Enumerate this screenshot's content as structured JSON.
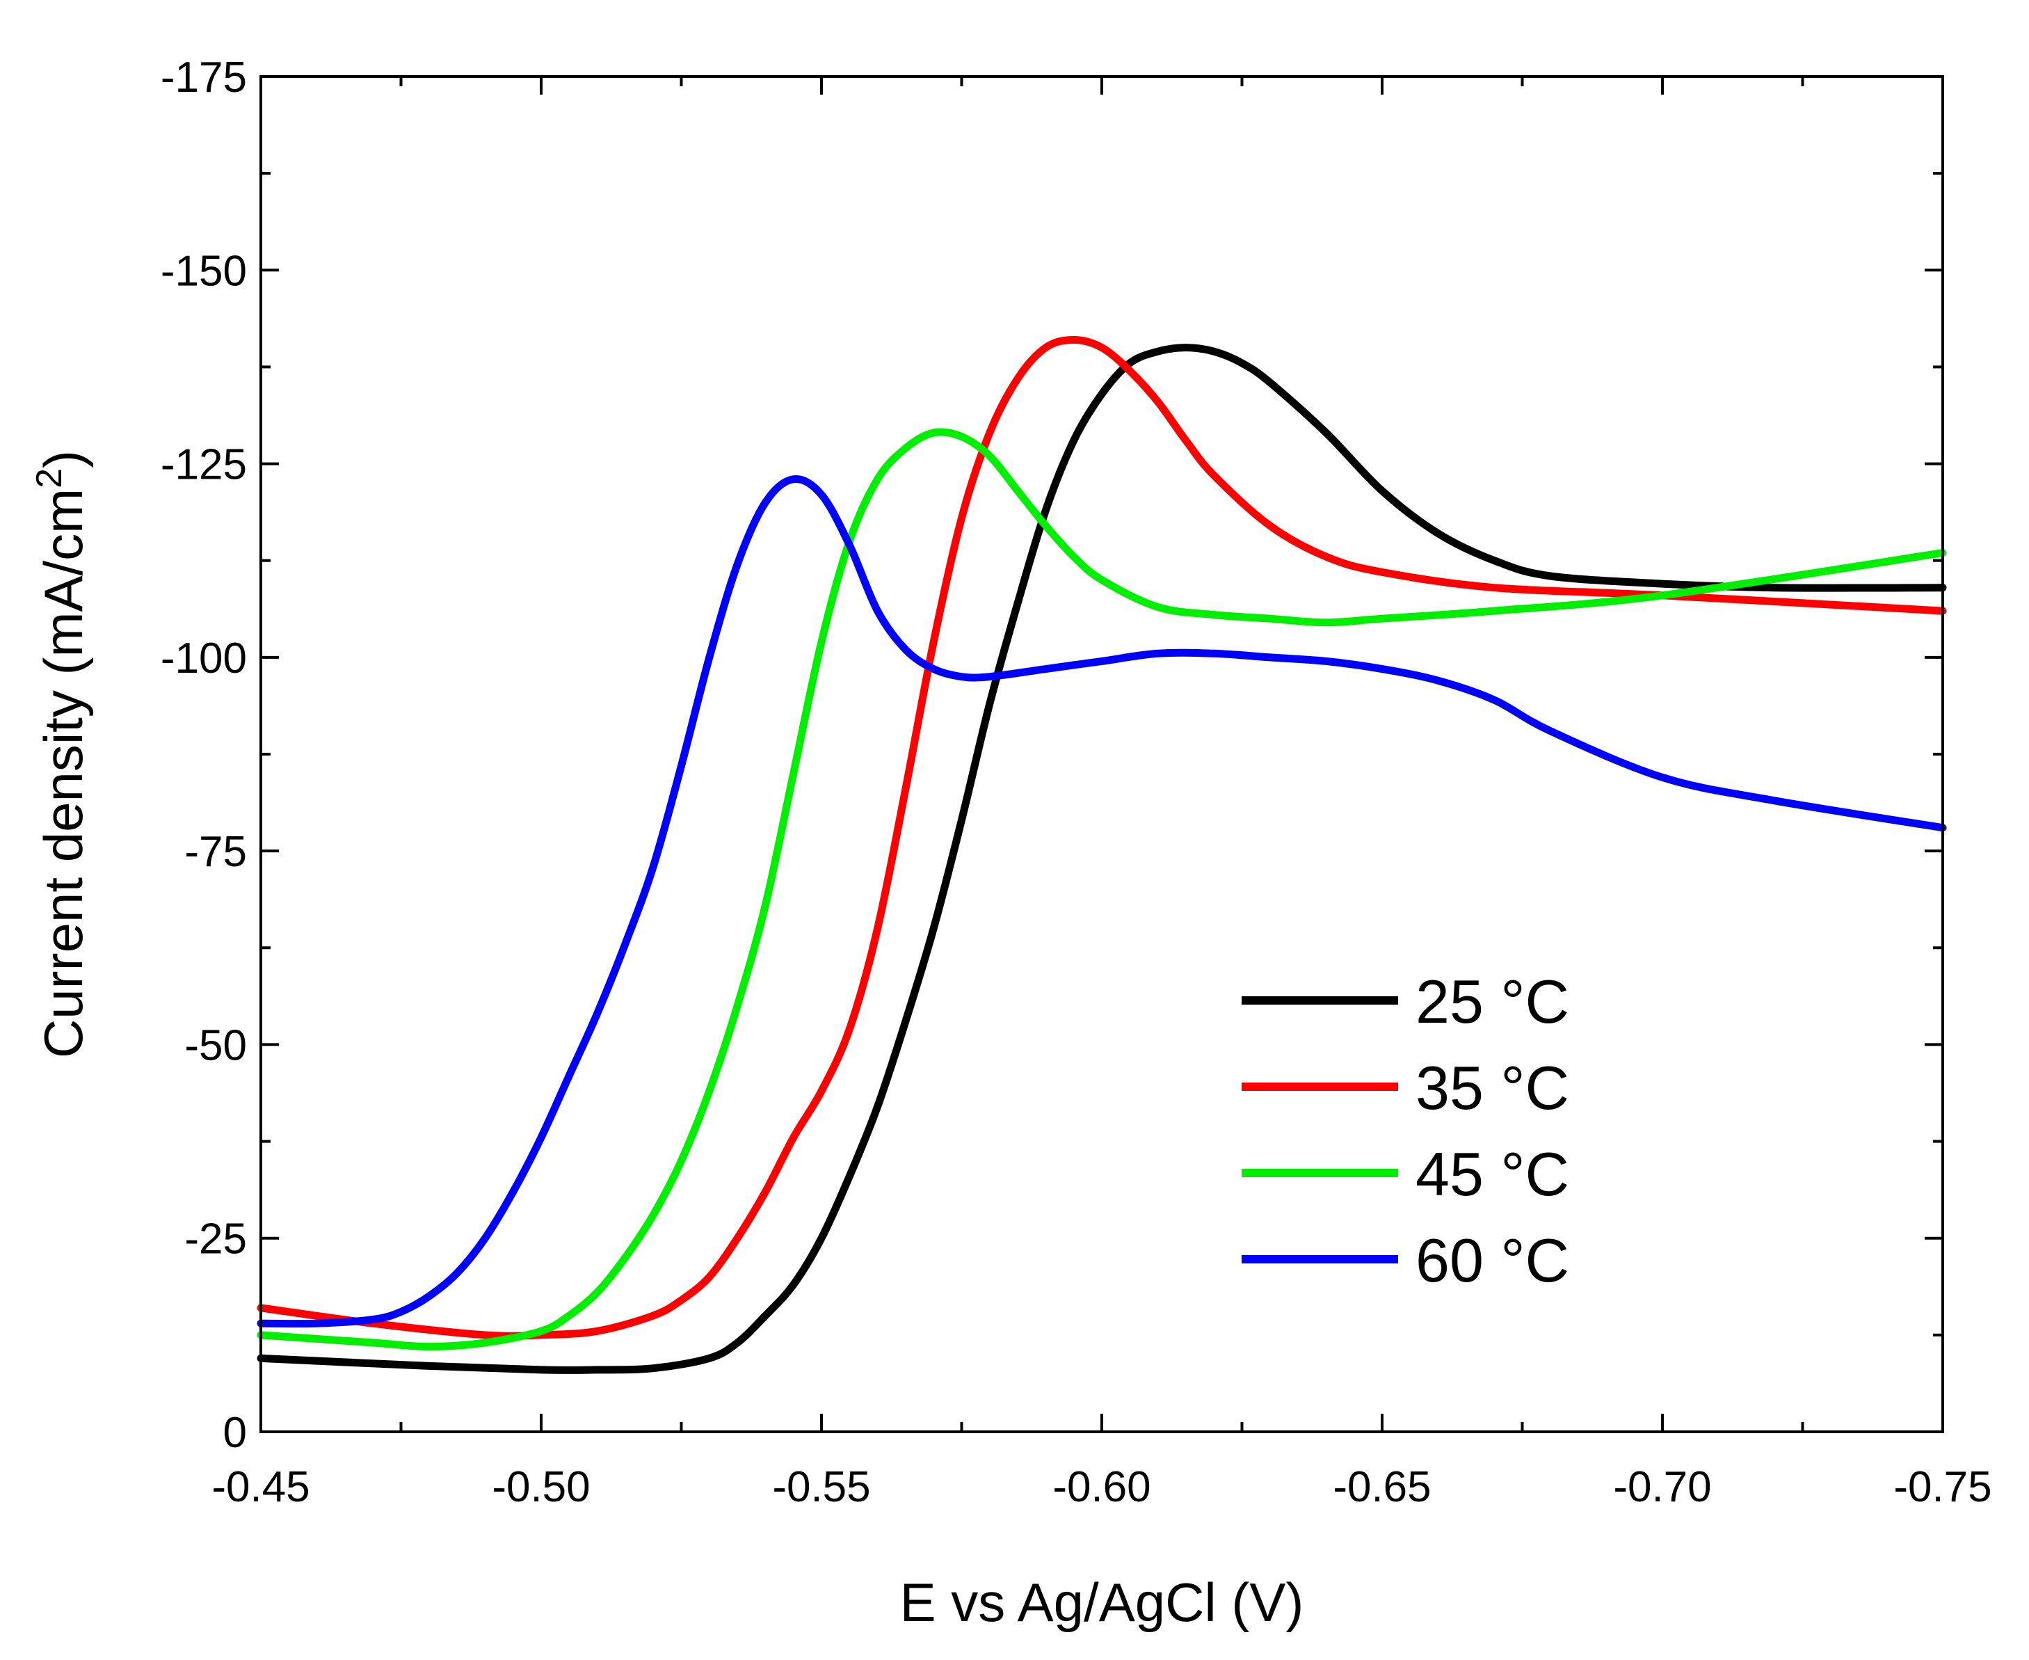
{
  "chart_data": {
    "type": "line",
    "title": "",
    "xlabel": "E vs Ag/AgCl (V)",
    "ylabel_main": "Current density (mA/cm",
    "ylabel_sup": "2",
    "ylabel_end": ")",
    "xlim": [
      -0.45,
      -0.75
    ],
    "ylim": [
      0,
      -175
    ],
    "x_ticks": [
      -0.45,
      -0.5,
      -0.55,
      -0.6,
      -0.65,
      -0.7,
      -0.75
    ],
    "x_tick_labels": [
      "-0.45",
      "-0.50",
      "-0.55",
      "-0.60",
      "-0.65",
      "-0.70",
      "-0.75"
    ],
    "y_ticks": [
      0,
      -25,
      -50,
      -75,
      -100,
      -125,
      -150,
      -175
    ],
    "y_tick_labels": [
      "0",
      "-25",
      "-50",
      "-75",
      "-100",
      "-125",
      "-150",
      "-175"
    ],
    "legend_position": "lower-right",
    "series": [
      {
        "name": "25 °C",
        "color": "#000000",
        "x": [
          -0.45,
          -0.48,
          -0.5,
          -0.51,
          -0.52,
          -0.53,
          -0.535,
          -0.54,
          -0.545,
          -0.55,
          -0.555,
          -0.56,
          -0.565,
          -0.57,
          -0.575,
          -0.58,
          -0.585,
          -0.59,
          -0.595,
          -0.6,
          -0.605,
          -0.61,
          -0.615,
          -0.62,
          -0.625,
          -0.63,
          -0.64,
          -0.65,
          -0.66,
          -0.67,
          -0.68,
          -0.7,
          -0.72,
          -0.75
        ],
        "y": [
          -9.5,
          -8.5,
          -8.0,
          -8.0,
          -8.2,
          -9.5,
          -11.5,
          -15,
          -19,
          -25,
          -33,
          -42,
          -53,
          -65,
          -79,
          -94,
          -107,
          -119,
          -128,
          -134,
          -138,
          -139.5,
          -140,
          -139.5,
          -138,
          -135.5,
          -129,
          -121.5,
          -116,
          -112.5,
          -110.5,
          -109.5,
          -109,
          -109
        ]
      },
      {
        "name": "35 °C",
        "color": "#ff0000",
        "x": [
          -0.45,
          -0.47,
          -0.49,
          -0.5,
          -0.51,
          -0.52,
          -0.525,
          -0.53,
          -0.535,
          -0.54,
          -0.545,
          -0.55,
          -0.555,
          -0.56,
          -0.565,
          -0.57,
          -0.575,
          -0.58,
          -0.585,
          -0.59,
          -0.595,
          -0.6,
          -0.605,
          -0.61,
          -0.615,
          -0.62,
          -0.63,
          -0.64,
          -0.65,
          -0.67,
          -0.7,
          -0.75
        ],
        "y": [
          -16,
          -14,
          -12.5,
          -12.5,
          -13,
          -15,
          -17,
          -20,
          -25,
          -31,
          -38,
          -44,
          -52,
          -65,
          -83,
          -102,
          -118,
          -129,
          -136,
          -140,
          -141,
          -140,
          -137,
          -133,
          -128,
          -123.5,
          -117,
          -113,
          -111,
          -109,
          -108,
          -106
        ]
      },
      {
        "name": "45 °C",
        "color": "#00ee00",
        "x": [
          -0.45,
          -0.47,
          -0.48,
          -0.49,
          -0.5,
          -0.505,
          -0.51,
          -0.515,
          -0.52,
          -0.525,
          -0.53,
          -0.535,
          -0.54,
          -0.545,
          -0.55,
          -0.555,
          -0.56,
          -0.565,
          -0.57,
          -0.575,
          -0.58,
          -0.585,
          -0.59,
          -0.595,
          -0.6,
          -0.61,
          -0.62,
          -0.63,
          -0.64,
          -0.65,
          -0.67,
          -0.7,
          -0.75
        ],
        "y": [
          -12.5,
          -11.5,
          -11.0,
          -11.5,
          -13,
          -15,
          -18,
          -22.5,
          -28,
          -35,
          -44,
          -55,
          -68,
          -85,
          -102,
          -115,
          -123,
          -127,
          -129,
          -128.5,
          -126,
          -121.5,
          -117,
          -113,
          -110,
          -106.5,
          -105.5,
          -105,
          -104.5,
          -105,
          -106,
          -108,
          -113.5
        ]
      },
      {
        "name": "60 °C",
        "color": "#0000ff",
        "x": [
          -0.45,
          -0.46,
          -0.47,
          -0.475,
          -0.48,
          -0.485,
          -0.49,
          -0.495,
          -0.5,
          -0.505,
          -0.51,
          -0.515,
          -0.52,
          -0.525,
          -0.53,
          -0.535,
          -0.54,
          -0.545,
          -0.55,
          -0.555,
          -0.56,
          -0.565,
          -0.57,
          -0.575,
          -0.58,
          -0.59,
          -0.6,
          -0.61,
          -0.62,
          -0.63,
          -0.64,
          -0.65,
          -0.66,
          -0.67,
          -0.68,
          -0.7,
          -0.72,
          -0.75
        ],
        "y": [
          -14,
          -14,
          -14.5,
          -15.5,
          -17.5,
          -20.5,
          -25,
          -31,
          -38,
          -46,
          -54,
          -63,
          -73,
          -86,
          -100,
          -112,
          -120,
          -123,
          -121,
          -114.5,
          -106,
          -101,
          -98.5,
          -97.5,
          -97.5,
          -98.5,
          -99.5,
          -100.5,
          -100.5,
          -100,
          -99.5,
          -98.5,
          -97,
          -94.5,
          -90.5,
          -84.5,
          -81.5,
          -78
        ]
      }
    ]
  }
}
